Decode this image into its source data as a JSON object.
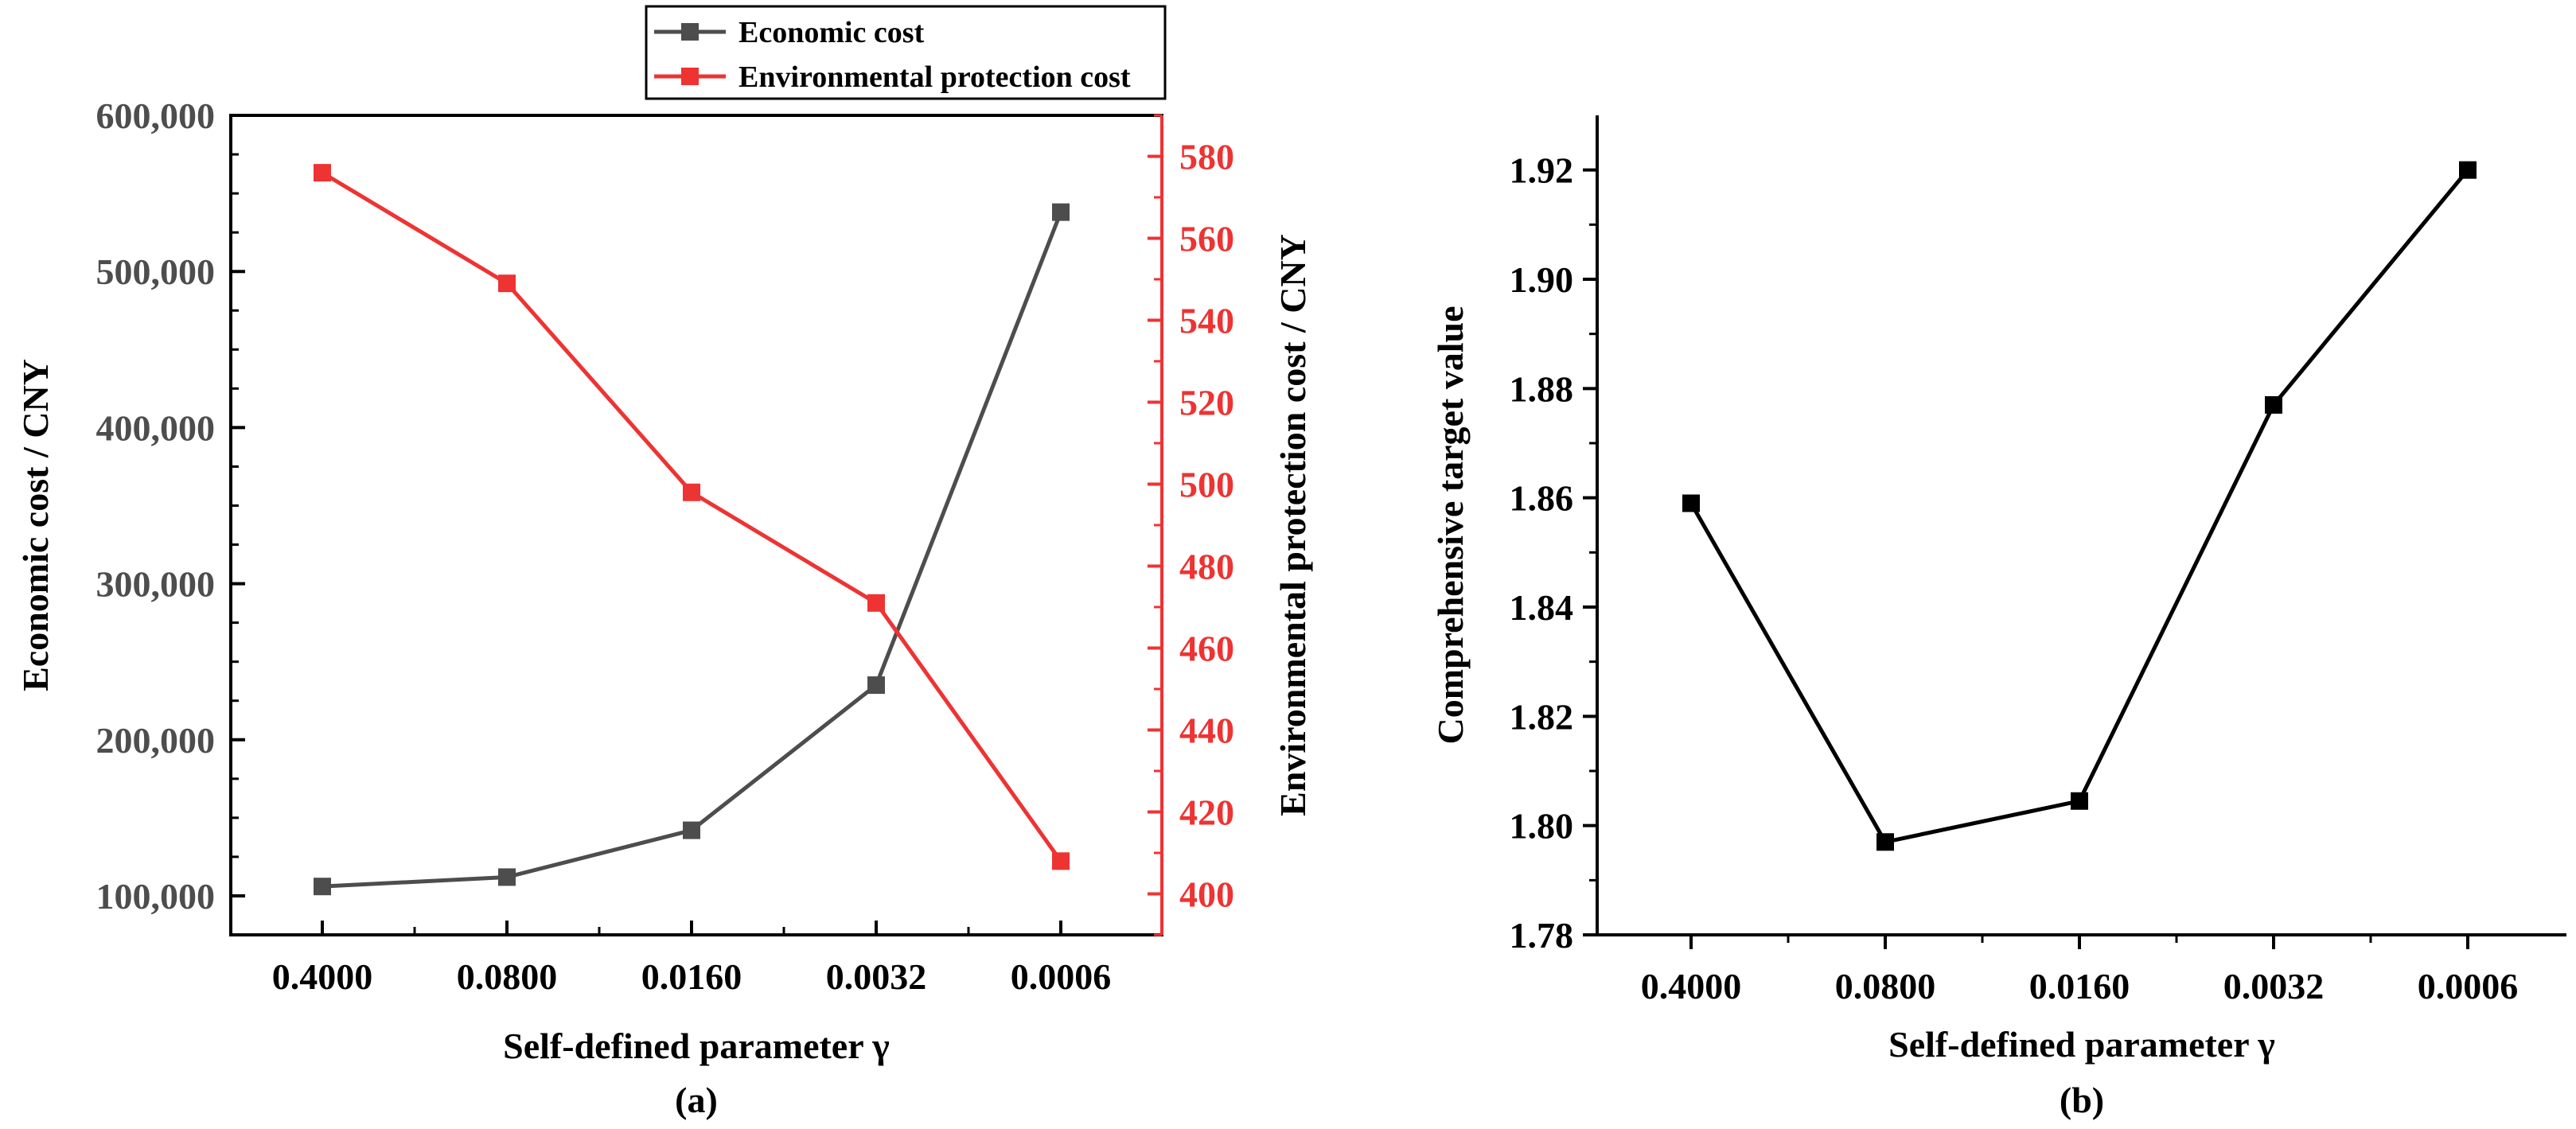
{
  "colors": {
    "economic": "#4d4d4d",
    "environmental": "#ee3333",
    "composite": "#000000",
    "axis": "#000000"
  },
  "chart_data": [
    {
      "type": "line",
      "panel_label": "(a)",
      "categories": [
        "0.4000",
        "0.0800",
        "0.0160",
        "0.0032",
        "0.0006"
      ],
      "xlabel": "Self-defined parameter γ",
      "ylabel": "Economic cost / CNY",
      "y2label": "Environmental protection cost / CNY",
      "ylim": [
        75000,
        600000
      ],
      "y_ticks": [
        "100,000",
        "200,000",
        "300,000",
        "400,000",
        "500,000",
        "600,000"
      ],
      "y_tick_values": [
        100000,
        200000,
        300000,
        400000,
        500000,
        600000
      ],
      "y2lim": [
        390,
        590
      ],
      "y2_ticks": [
        "400",
        "420",
        "440",
        "460",
        "480",
        "500",
        "520",
        "540",
        "560",
        "580"
      ],
      "y2_tick_values": [
        400,
        420,
        440,
        460,
        480,
        500,
        520,
        540,
        560,
        580
      ],
      "legend": {
        "placement": "top-center"
      },
      "series": [
        {
          "name": "Economic cost",
          "axis": "left",
          "values": [
            106000,
            112000,
            142000,
            235000,
            538000
          ]
        },
        {
          "name": "Environmental protection cost",
          "axis": "right",
          "values": [
            576,
            549,
            498,
            471,
            408
          ]
        }
      ]
    },
    {
      "type": "line",
      "panel_label": "(b)",
      "categories": [
        "0.4000",
        "0.0800",
        "0.0160",
        "0.0032",
        "0.0006"
      ],
      "xlabel": "Self-defined parameter γ",
      "ylabel": "Comprehensive target value",
      "ylim": [
        1.78,
        1.93
      ],
      "y_ticks": [
        "1.78",
        "1.80",
        "1.82",
        "1.84",
        "1.86",
        "1.88",
        "1.90",
        "1.92"
      ],
      "y_tick_values": [
        1.78,
        1.8,
        1.82,
        1.84,
        1.86,
        1.88,
        1.9,
        1.92
      ],
      "series": [
        {
          "values": [
            1.859,
            1.797,
            1.8045,
            1.877,
            1.92
          ]
        }
      ]
    }
  ]
}
